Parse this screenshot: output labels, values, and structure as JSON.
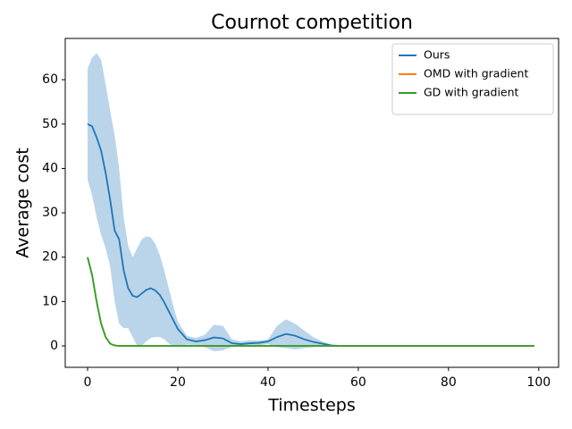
{
  "chart_data": {
    "type": "line",
    "title": "Cournot competition",
    "xlabel": "Timesteps",
    "ylabel": "Average cost",
    "x": [
      0,
      1,
      2,
      3,
      4,
      5,
      6,
      7,
      8,
      9,
      10,
      11,
      12,
      13,
      14,
      15,
      16,
      17,
      18,
      19,
      20,
      22,
      24,
      26,
      28,
      30,
      32,
      34,
      36,
      38,
      40,
      42,
      44,
      46,
      48,
      50,
      52,
      54,
      56,
      58,
      60,
      70,
      80,
      90,
      99
    ],
    "series": [
      {
        "name": "Ours",
        "color": "#1f77b4",
        "band_color": "#bad4ea",
        "values": [
          50,
          49.5,
          47,
          44,
          39,
          33,
          26,
          24,
          17,
          13,
          11.3,
          11,
          11.8,
          12.6,
          13,
          12.5,
          11.5,
          9.8,
          7.8,
          5.8,
          3.8,
          1.5,
          1.0,
          1.3,
          1.9,
          1.7,
          0.6,
          0.4,
          0.6,
          0.7,
          1.0,
          2.0,
          2.7,
          2.3,
          1.5,
          0.9,
          0.5,
          0.1,
          0,
          0,
          0,
          0,
          0,
          0,
          0
        ],
        "band_upper": [
          62.5,
          65,
          66,
          64.5,
          59,
          53,
          47.5,
          40,
          29,
          22.5,
          20,
          22,
          24,
          24.7,
          24.5,
          23,
          20.5,
          17,
          13,
          9,
          5.5,
          2.3,
          1.8,
          2.5,
          4.8,
          4.5,
          1.5,
          1.0,
          1.3,
          1.2,
          1.5,
          4.5,
          6.0,
          5.0,
          3.5,
          2.0,
          1.0,
          0.3,
          0,
          0,
          0,
          0,
          0,
          0,
          0
        ],
        "band_lower": [
          37.5,
          34,
          29,
          25,
          22,
          18,
          10,
          5,
          4,
          4,
          2,
          0,
          0,
          1,
          1.8,
          2,
          2,
          1.5,
          0.5,
          0,
          -0.2,
          0.3,
          0.2,
          -0.3,
          -1.2,
          -1.0,
          -0.2,
          -0.2,
          0,
          0.1,
          0.4,
          -0.3,
          -0.5,
          -0.8,
          -0.5,
          -0.3,
          0,
          -0.1,
          0,
          0,
          0,
          0,
          0,
          0,
          0
        ]
      },
      {
        "name": "OMD with gradient",
        "color": "#ff7f0e",
        "values": [
          20,
          16,
          10,
          5,
          2,
          0.5,
          0.1,
          0,
          0,
          0,
          0,
          0,
          0,
          0,
          0,
          0,
          0,
          0,
          0,
          0,
          0,
          0,
          0,
          0,
          0,
          0,
          0,
          0,
          0,
          0,
          0,
          0,
          0,
          0,
          0,
          0,
          0,
          0,
          0,
          0,
          0,
          0,
          0,
          0,
          0
        ]
      },
      {
        "name": "GD with gradient",
        "color": "#2ca02c",
        "values": [
          20,
          16,
          10,
          5,
          2,
          0.5,
          0.1,
          0,
          0,
          0,
          0,
          0,
          0,
          0,
          0,
          0,
          0,
          0,
          0,
          0,
          0,
          0,
          0,
          0,
          0,
          0,
          0,
          0,
          0,
          0,
          0,
          0,
          0,
          0,
          0,
          0,
          0,
          0,
          0,
          0,
          0,
          0,
          0,
          0,
          0
        ]
      }
    ],
    "xlim": [
      -4.95,
      104.4
    ],
    "ylim": [
      -4.83,
      69.3
    ],
    "xticks": [
      0,
      20,
      40,
      60,
      80,
      100
    ],
    "yticks": [
      0,
      10,
      20,
      30,
      40,
      50,
      60
    ],
    "legend": "upper-right"
  }
}
